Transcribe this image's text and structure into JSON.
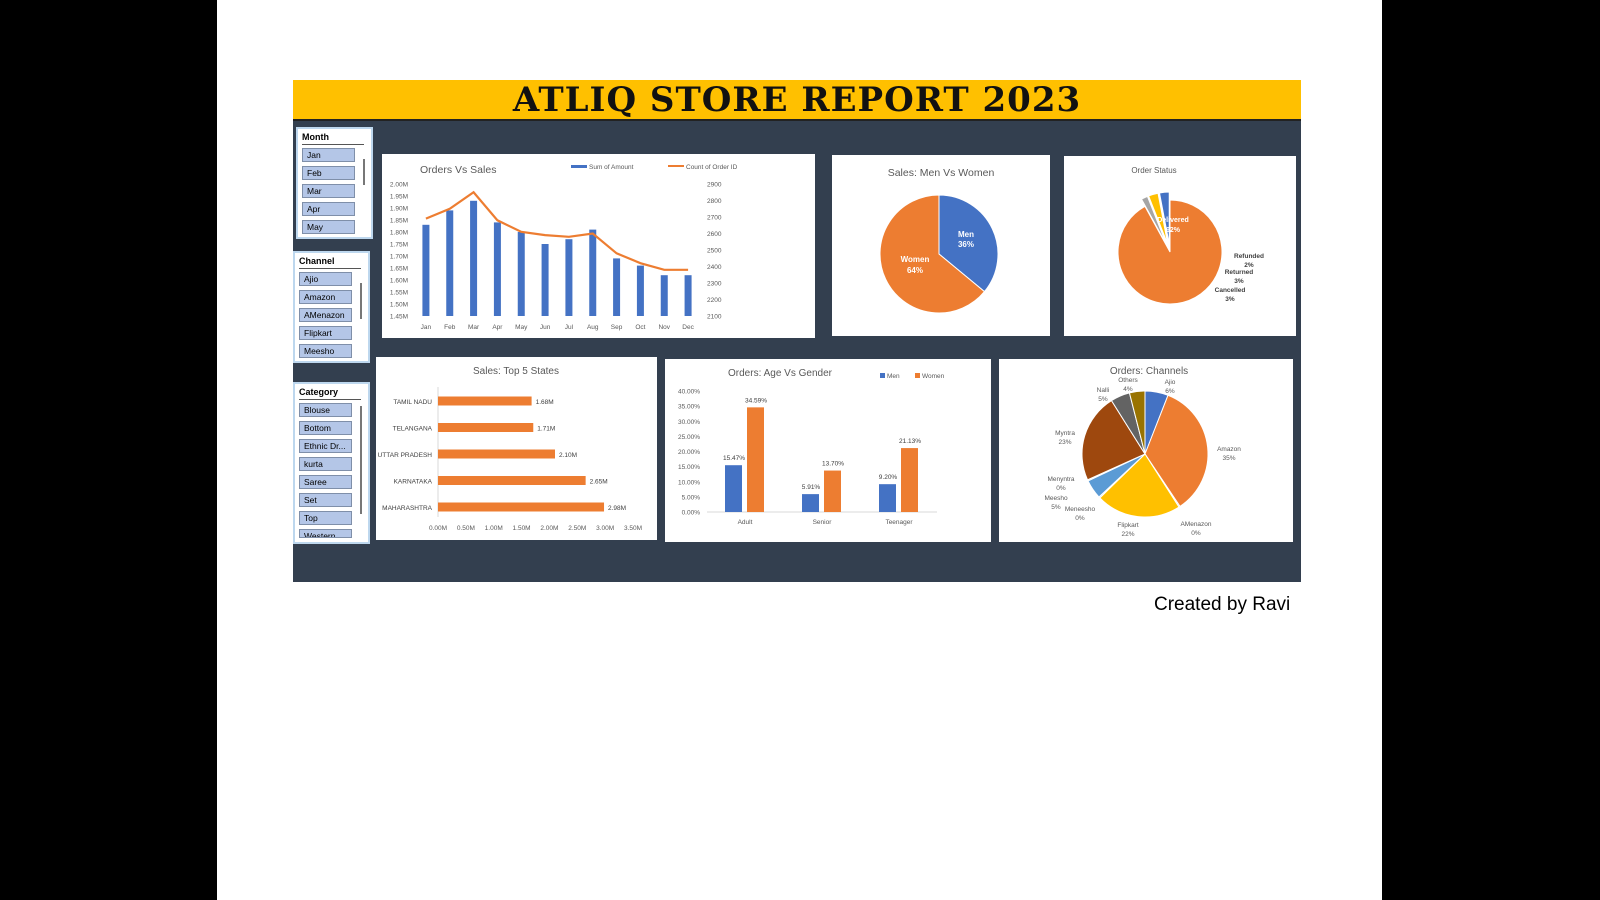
{
  "report_title": "ATLIQ STORE REPORT 2023",
  "credit": "Created by Ravi",
  "colors": {
    "blue": "#4472c4",
    "orange": "#ed7d31",
    "yellow": "#ffc000",
    "bg": "#333f4f"
  },
  "slicers": {
    "month": {
      "title": "Month",
      "items": [
        "Jan",
        "Feb",
        "Mar",
        "Apr",
        "May"
      ]
    },
    "channel": {
      "title": "Channel",
      "items": [
        "Ajio",
        "Amazon",
        "AMenazon",
        "Flipkart",
        "Meesho"
      ]
    },
    "category": {
      "title": "Category",
      "items": [
        "Blouse",
        "Bottom",
        "Ethnic Dr...",
        "kurta",
        "Saree",
        "Set",
        "Top",
        "Western..."
      ]
    }
  },
  "chart_data": [
    {
      "id": "orders_vs_sales",
      "type": "bar",
      "title": "Orders Vs Sales",
      "categories": [
        "Jan",
        "Feb",
        "Mar",
        "Apr",
        "May",
        "Jun",
        "Jul",
        "Aug",
        "Sep",
        "Oct",
        "Nov",
        "Dec"
      ],
      "series": [
        {
          "name": "Sum of Amount",
          "type": "bar",
          "axis": "left",
          "values": [
            1.83,
            1.89,
            1.93,
            1.84,
            1.8,
            1.75,
            1.77,
            1.81,
            1.69,
            1.66,
            1.62,
            1.62
          ]
        },
        {
          "name": "Count of Order ID",
          "type": "line",
          "axis": "right",
          "values": [
            2690,
            2750,
            2850,
            2680,
            2610,
            2590,
            2580,
            2600,
            2480,
            2420,
            2380,
            2380
          ]
        }
      ],
      "yticks": [
        "2.00M",
        "1.95M",
        "1.90M",
        "1.85M",
        "1.80M",
        "1.75M",
        "1.70M",
        "1.65M",
        "1.60M",
        "1.55M",
        "1.50M",
        "1.45M"
      ],
      "ylim": [
        1.45,
        2.0
      ],
      "y2ticks": [
        "2900",
        "2800",
        "2700",
        "2600",
        "2500",
        "2400",
        "2300",
        "2200",
        "2100"
      ],
      "y2lim": [
        2100,
        2900
      ]
    },
    {
      "id": "men_vs_women",
      "type": "pie",
      "title": "Sales: Men Vs Women",
      "slices": [
        {
          "label": "Men",
          "value": 36,
          "pct": "36%",
          "color": "#4472c4"
        },
        {
          "label": "Women",
          "value": 64,
          "pct": "64%",
          "color": "#ed7d31"
        }
      ]
    },
    {
      "id": "order_status",
      "type": "pie",
      "title": "Order Status",
      "slices": [
        {
          "label": "Delivered",
          "value": 92,
          "pct": "92%",
          "color": "#ed7d31"
        },
        {
          "label": "Refunded",
          "value": 2,
          "pct": "2%",
          "color": "#a5a5a5"
        },
        {
          "label": "Returned",
          "value": 3,
          "pct": "3%",
          "color": "#ffc000"
        },
        {
          "label": "Cancelled",
          "value": 3,
          "pct": "3%",
          "color": "#4472c4"
        }
      ]
    },
    {
      "id": "top5_states",
      "type": "bar",
      "orientation": "horizontal",
      "title": "Sales: Top 5 States",
      "categories": [
        "TAMIL NADU",
        "TELANGANA",
        "UTTAR PRADESH",
        "KARNATAKA",
        "MAHARASHTRA"
      ],
      "values": [
        1.68,
        1.71,
        2.1,
        2.65,
        2.98
      ],
      "labels": [
        "1.68M",
        "1.71M",
        "2.10M",
        "2.65M",
        "2.98M"
      ],
      "xticks": [
        "0.00M",
        "0.50M",
        "1.00M",
        "1.50M",
        "2.00M",
        "2.50M",
        "3.00M",
        "3.50M"
      ],
      "xlim": [
        0,
        3.5
      ]
    },
    {
      "id": "age_vs_gender",
      "type": "bar",
      "title": "Orders: Age Vs Gender",
      "categories": [
        "Adult",
        "Senior",
        "Teenager"
      ],
      "series": [
        {
          "name": "Men",
          "values": [
            15.47,
            5.91,
            9.2
          ],
          "labels": [
            "15.47%",
            "5.91%",
            "9.20%"
          ]
        },
        {
          "name": "Women",
          "values": [
            34.59,
            13.7,
            21.13
          ],
          "labels": [
            "34.59%",
            "13.70%",
            "21.13%"
          ]
        }
      ],
      "yticks": [
        "40.00%",
        "35.00%",
        "30.00%",
        "25.00%",
        "20.00%",
        "15.00%",
        "10.00%",
        "5.00%",
        "0.00%"
      ],
      "ylim": [
        0,
        40
      ]
    },
    {
      "id": "orders_channels",
      "type": "pie",
      "title": "Orders: Channels",
      "slices": [
        {
          "label": "Ajio",
          "value": 6,
          "pct": "6%",
          "color": "#4472c4"
        },
        {
          "label": "Amazon",
          "value": 35,
          "pct": "35%",
          "color": "#ed7d31"
        },
        {
          "label": "AMenazon",
          "value": 0.3,
          "pct": "0%",
          "color": "#a5a5a5"
        },
        {
          "label": "Flipkart",
          "value": 22,
          "pct": "22%",
          "color": "#ffc000"
        },
        {
          "label": "Meneesho",
          "value": 0.3,
          "pct": "0%",
          "color": "#5b9bd5"
        },
        {
          "label": "Meesho",
          "value": 5,
          "pct": "5%",
          "color": "#5b9bd5"
        },
        {
          "label": "Menyntra",
          "value": 0.3,
          "pct": "0%",
          "color": "#70ad47"
        },
        {
          "label": "Myntra",
          "value": 23,
          "pct": "23%",
          "color": "#9e480e"
        },
        {
          "label": "Nalli",
          "value": 5,
          "pct": "5%",
          "color": "#636363"
        },
        {
          "label": "Others",
          "value": 4,
          "pct": "4%",
          "color": "#997300"
        }
      ]
    }
  ]
}
